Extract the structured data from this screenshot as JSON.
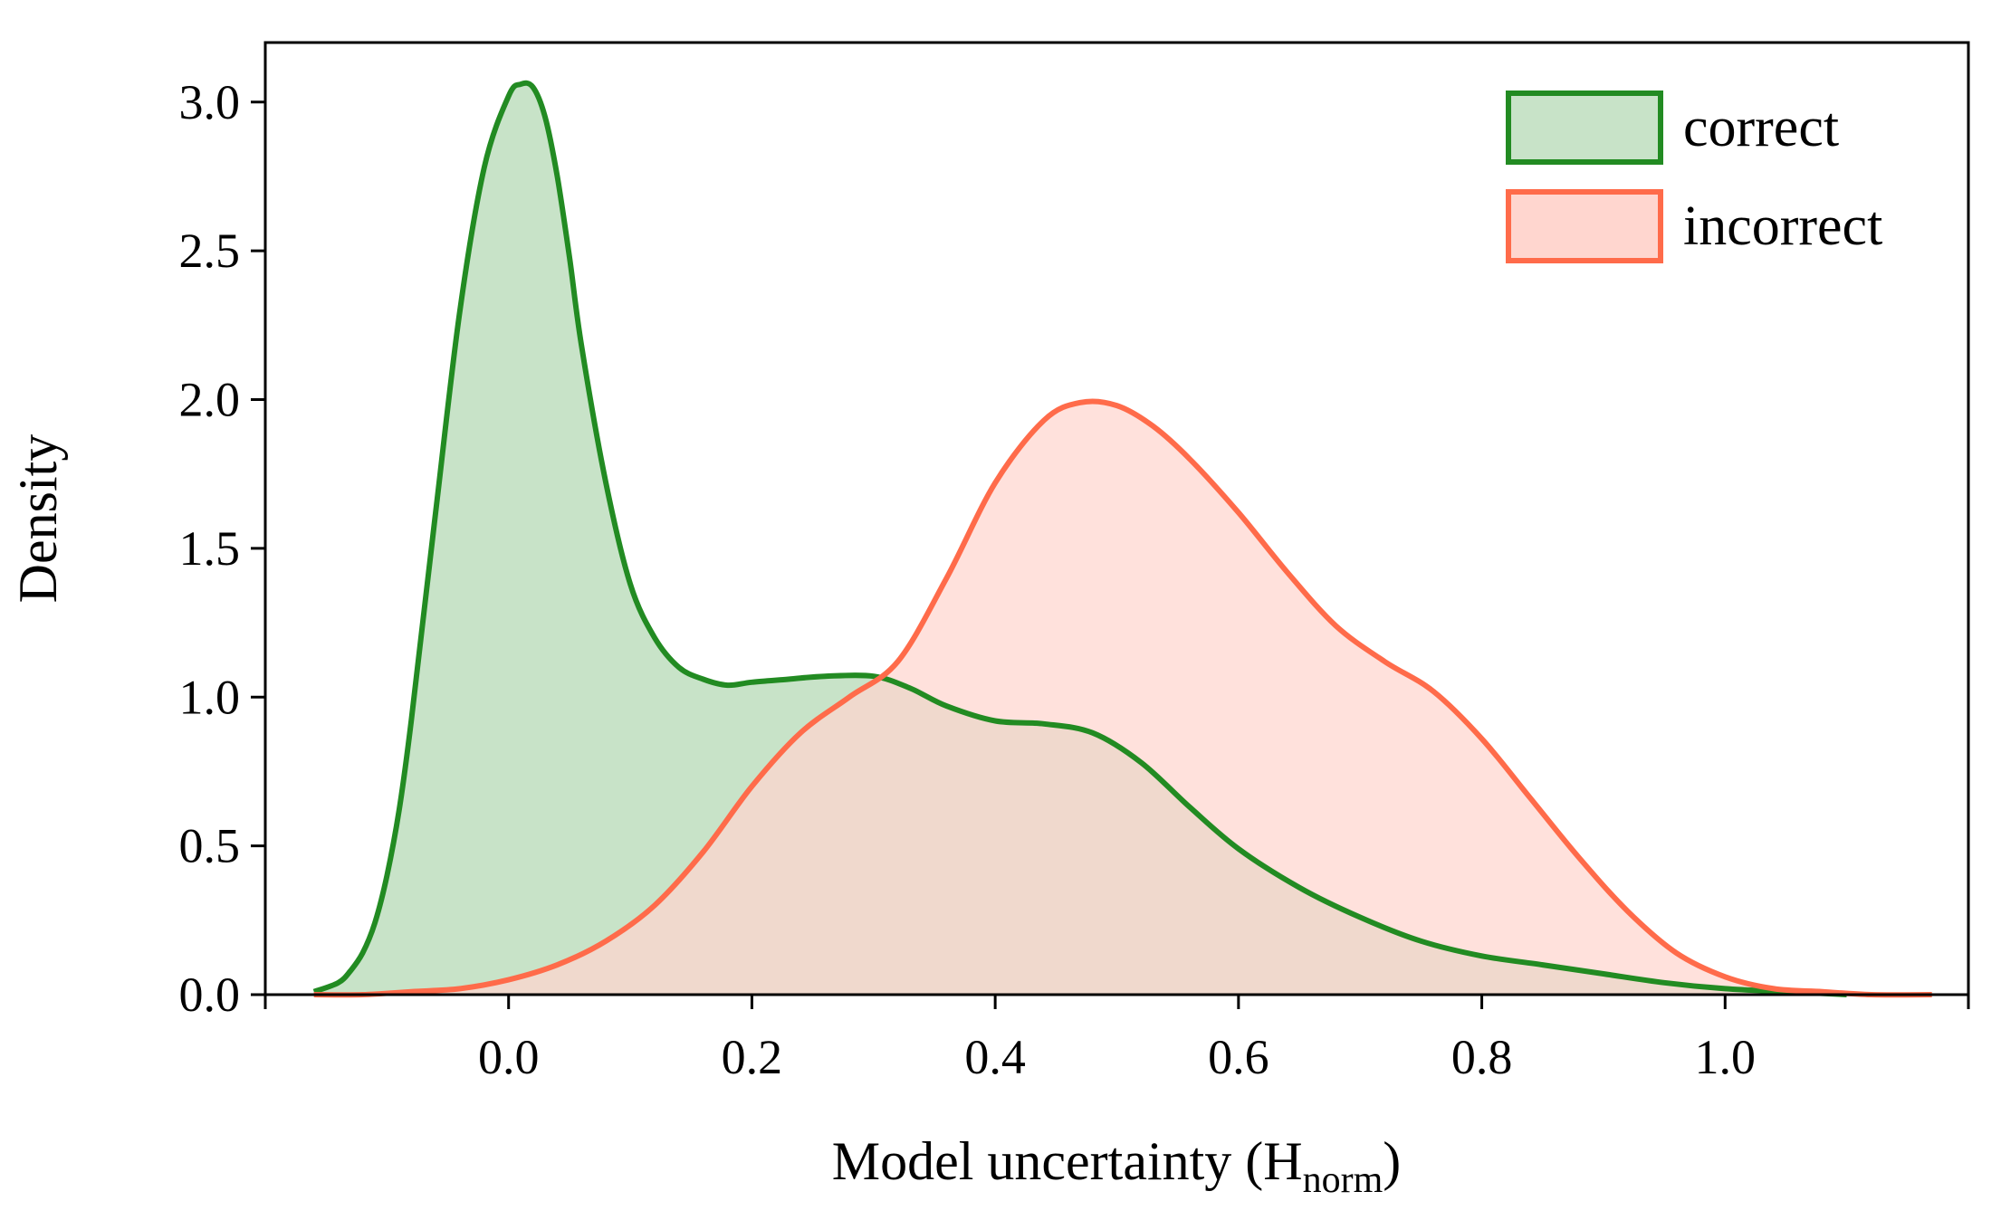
{
  "chart_data": {
    "type": "area",
    "title": "",
    "xlabel": "Model uncertainty (H",
    "xlabel_subscript": "norm",
    "xlabel_suffix": ")",
    "ylabel": "Density",
    "xlim": [
      -0.2,
      1.2
    ],
    "ylim": [
      0.0,
      3.2
    ],
    "xticks": [
      0.0,
      0.2,
      0.4,
      0.6,
      0.8,
      1.0
    ],
    "xtick_labels": [
      "0.0",
      "0.2",
      "0.4",
      "0.6",
      "0.8",
      "1.0"
    ],
    "xminor_ticks": [
      -0.2,
      1.2
    ],
    "yticks": [
      0.0,
      0.5,
      1.0,
      1.5,
      2.0,
      2.5,
      3.0
    ],
    "ytick_labels": [
      "0.0",
      "0.5",
      "1.0",
      "1.5",
      "2.0",
      "2.5",
      "3.0"
    ],
    "grid": false,
    "legend_position": "top-right",
    "series": [
      {
        "name": "correct",
        "color": "#228B22",
        "fill": "#c8e3c8",
        "x": [
          -0.16,
          -0.14,
          -0.13,
          -0.12,
          -0.11,
          -0.1,
          -0.09,
          -0.08,
          -0.06,
          -0.04,
          -0.02,
          0.0,
          0.01,
          0.02,
          0.03,
          0.04,
          0.05,
          0.06,
          0.08,
          0.1,
          0.12,
          0.14,
          0.16,
          0.18,
          0.2,
          0.23,
          0.26,
          0.3,
          0.33,
          0.36,
          0.4,
          0.44,
          0.48,
          0.52,
          0.56,
          0.6,
          0.65,
          0.7,
          0.75,
          0.8,
          0.85,
          0.9,
          0.95,
          1.0,
          1.05,
          1.1
        ],
        "y": [
          0.01,
          0.04,
          0.08,
          0.14,
          0.24,
          0.4,
          0.62,
          0.92,
          1.62,
          2.3,
          2.78,
          3.02,
          3.06,
          3.05,
          2.95,
          2.75,
          2.48,
          2.18,
          1.72,
          1.38,
          1.2,
          1.1,
          1.06,
          1.04,
          1.05,
          1.06,
          1.07,
          1.07,
          1.03,
          0.97,
          0.92,
          0.91,
          0.88,
          0.78,
          0.63,
          0.49,
          0.36,
          0.26,
          0.18,
          0.13,
          0.1,
          0.07,
          0.04,
          0.02,
          0.01,
          0.0
        ]
      },
      {
        "name": "incorrect",
        "color": "#FF6B4A",
        "fill": "#ffd6cf",
        "x": [
          -0.16,
          -0.12,
          -0.08,
          -0.04,
          0.0,
          0.04,
          0.08,
          0.12,
          0.16,
          0.2,
          0.24,
          0.28,
          0.32,
          0.36,
          0.4,
          0.44,
          0.47,
          0.5,
          0.53,
          0.56,
          0.6,
          0.64,
          0.68,
          0.72,
          0.76,
          0.8,
          0.84,
          0.88,
          0.92,
          0.96,
          1.0,
          1.04,
          1.08,
          1.12,
          1.17
        ],
        "y": [
          0.0,
          0.0,
          0.01,
          0.02,
          0.05,
          0.1,
          0.18,
          0.3,
          0.48,
          0.7,
          0.88,
          1.0,
          1.12,
          1.4,
          1.72,
          1.93,
          1.99,
          1.98,
          1.91,
          1.8,
          1.62,
          1.42,
          1.24,
          1.12,
          1.02,
          0.86,
          0.66,
          0.46,
          0.28,
          0.14,
          0.06,
          0.02,
          0.01,
          0.0,
          0.0
        ]
      }
    ]
  }
}
